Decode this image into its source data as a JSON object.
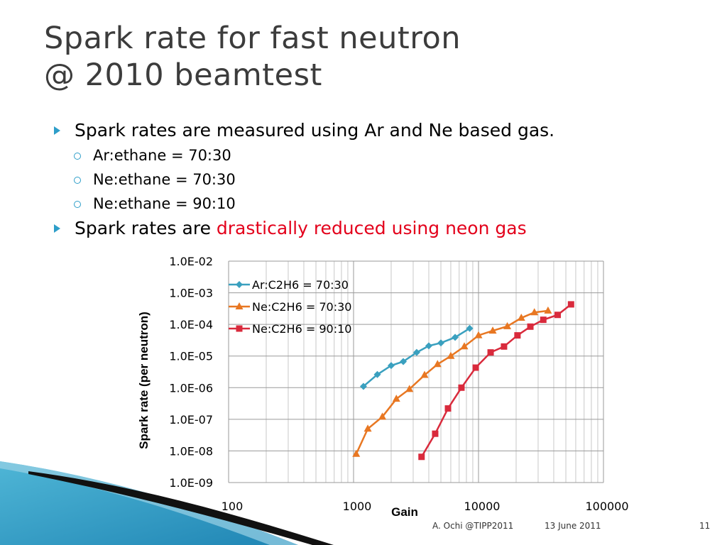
{
  "slide": {
    "title_line1": "Spark rate for fast neutron",
    "title_line2": "@ 2010 beamtest",
    "bullets": {
      "b1": "Spark rates are measured using Ar and Ne based gas.",
      "sub1": "Ar:ethane = 70:30",
      "sub2": "Ne:ethane = 70:30",
      "sub3": "Ne:ethane = 90:10",
      "b2_plain": "Spark rates are ",
      "b2_red": "drastically reduced using neon gas"
    },
    "footer": {
      "author": "A. Ochi  @TIPP2011",
      "date": "13 June 2011",
      "page": "11"
    },
    "colors": {
      "bullet_accent": "#2e9ec9",
      "highlight": "#e3001b"
    }
  },
  "chart_data": {
    "type": "scatter",
    "title": "",
    "xlabel": "Gain",
    "ylabel": "Spark rate (per neutron)",
    "x_scale": "log",
    "y_scale": "log",
    "xlim": [
      100,
      100000
    ],
    "ylim": [
      1e-09,
      0.01
    ],
    "x_ticks": [
      "100",
      "1000",
      "10000",
      "100000"
    ],
    "y_ticks": [
      "1.0E-09",
      "1.0E-08",
      "1.0E-07",
      "1.0E-06",
      "1.0E-05",
      "1.0E-04",
      "1.0E-03",
      "1.0E-02"
    ],
    "grid": true,
    "legend": "top-left",
    "series": [
      {
        "name": "Ar:C2H6 = 70:30",
        "color": "#3aa0bf",
        "marker": "diamond",
        "points": [
          [
            1200,
            1.1e-06
          ],
          [
            1550,
            2.6e-06
          ],
          [
            2000,
            5e-06
          ],
          [
            2500,
            6.7e-06
          ],
          [
            3200,
            1.3e-05
          ],
          [
            4000,
            2.1e-05
          ],
          [
            5000,
            2.6e-05
          ],
          [
            6500,
            3.9e-05
          ],
          [
            8500,
            7.5e-05
          ]
        ]
      },
      {
        "name": "Ne:C2H6 = 70:30",
        "color": "#e87722",
        "marker": "triangle",
        "points": [
          [
            1050,
            8e-09
          ],
          [
            1300,
            5e-08
          ],
          [
            1700,
            1.2e-07
          ],
          [
            2200,
            4.4e-07
          ],
          [
            2800,
            9e-07
          ],
          [
            3700,
            2.5e-06
          ],
          [
            4700,
            5.5e-06
          ],
          [
            6000,
            1e-05
          ],
          [
            7700,
            2e-05
          ],
          [
            10000,
            4.5e-05
          ],
          [
            13000,
            6.3e-05
          ],
          [
            17000,
            8.7e-05
          ],
          [
            22000,
            0.00016
          ],
          [
            28000,
            0.00024
          ],
          [
            36000,
            0.00027
          ]
        ]
      },
      {
        "name": "Ne:C2H6 = 90:10",
        "color": "#d92a3c",
        "marker": "square",
        "points": [
          [
            3500,
            6.5e-09
          ],
          [
            4500,
            3.5e-08
          ],
          [
            5700,
            2.2e-07
          ],
          [
            7300,
            1e-06
          ],
          [
            9500,
            4.3e-06
          ],
          [
            12500,
            1.3e-05
          ],
          [
            16000,
            2e-05
          ],
          [
            20500,
            4.5e-05
          ],
          [
            26000,
            8.5e-05
          ],
          [
            33000,
            0.00014
          ],
          [
            43000,
            0.0002
          ],
          [
            55000,
            0.00043
          ]
        ]
      }
    ]
  }
}
